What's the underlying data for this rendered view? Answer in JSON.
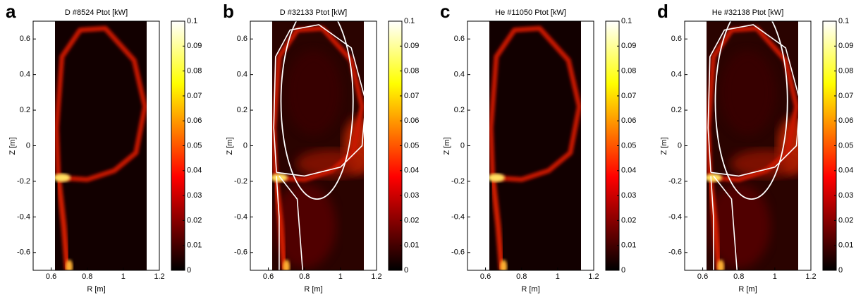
{
  "chart_data": [
    {
      "type": "heatmap",
      "panel_label": "a",
      "title": "D #8524 Ptot [kW]",
      "xlabel": "R [m]",
      "ylabel": "Z [m]",
      "xlim": [
        0.5,
        1.2
      ],
      "xticks": [
        0.6,
        0.8,
        1,
        1.2
      ],
      "ylim": [
        -0.7,
        0.7
      ],
      "yticks": [
        -0.6,
        -0.4,
        -0.2,
        0,
        0.2,
        0.4,
        0.6
      ],
      "colormap": "hot",
      "clim": [
        0,
        0.1
      ],
      "cticks": [
        0,
        0.01,
        0.02,
        0.03,
        0.04,
        0.05,
        0.06,
        0.07,
        0.08,
        0.09,
        0.1
      ],
      "separatrix_contours": false
    },
    {
      "type": "heatmap",
      "panel_label": "b",
      "title": "D #32133 Ptot [kW]",
      "xlabel": "R [m]",
      "ylabel": "Z [m]",
      "xlim": [
        0.5,
        1.2
      ],
      "xticks": [
        0.6,
        0.8,
        1,
        1.2
      ],
      "ylim": [
        -0.7,
        0.7
      ],
      "yticks": [
        -0.6,
        -0.4,
        -0.2,
        0,
        0.2,
        0.4,
        0.6
      ],
      "colormap": "hot",
      "clim": [
        0,
        0.1
      ],
      "cticks": [
        0,
        0.01,
        0.02,
        0.03,
        0.04,
        0.05,
        0.06,
        0.07,
        0.08,
        0.09,
        0.1
      ],
      "separatrix_contours": true
    },
    {
      "type": "heatmap",
      "panel_label": "c",
      "title": "He #11050 Ptot [kW]",
      "xlabel": "R [m]",
      "ylabel": "Z [m]",
      "xlim": [
        0.5,
        1.2
      ],
      "xticks": [
        0.6,
        0.8,
        1,
        1.2
      ],
      "ylim": [
        -0.7,
        0.7
      ],
      "yticks": [
        -0.6,
        -0.4,
        -0.2,
        0,
        0.2,
        0.4,
        0.6
      ],
      "colormap": "hot",
      "clim": [
        0,
        0.1
      ],
      "cticks": [
        0,
        0.01,
        0.02,
        0.03,
        0.04,
        0.05,
        0.06,
        0.07,
        0.08,
        0.09,
        0.1
      ],
      "separatrix_contours": false
    },
    {
      "type": "heatmap",
      "panel_label": "d",
      "title": "He #32138 Ptot [kW]",
      "xlabel": "R [m]",
      "ylabel": "Z [m]",
      "xlim": [
        0.5,
        1.2
      ],
      "xticks": [
        0.6,
        0.8,
        1,
        1.2
      ],
      "ylim": [
        -0.7,
        0.7
      ],
      "yticks": [
        -0.6,
        -0.4,
        -0.2,
        0,
        0.2,
        0.4,
        0.6
      ],
      "colormap": "hot",
      "clim": [
        0,
        0.1
      ],
      "cticks": [
        0,
        0.01,
        0.02,
        0.03,
        0.04,
        0.05,
        0.06,
        0.07,
        0.08,
        0.09,
        0.1
      ],
      "separatrix_contours": true
    }
  ]
}
